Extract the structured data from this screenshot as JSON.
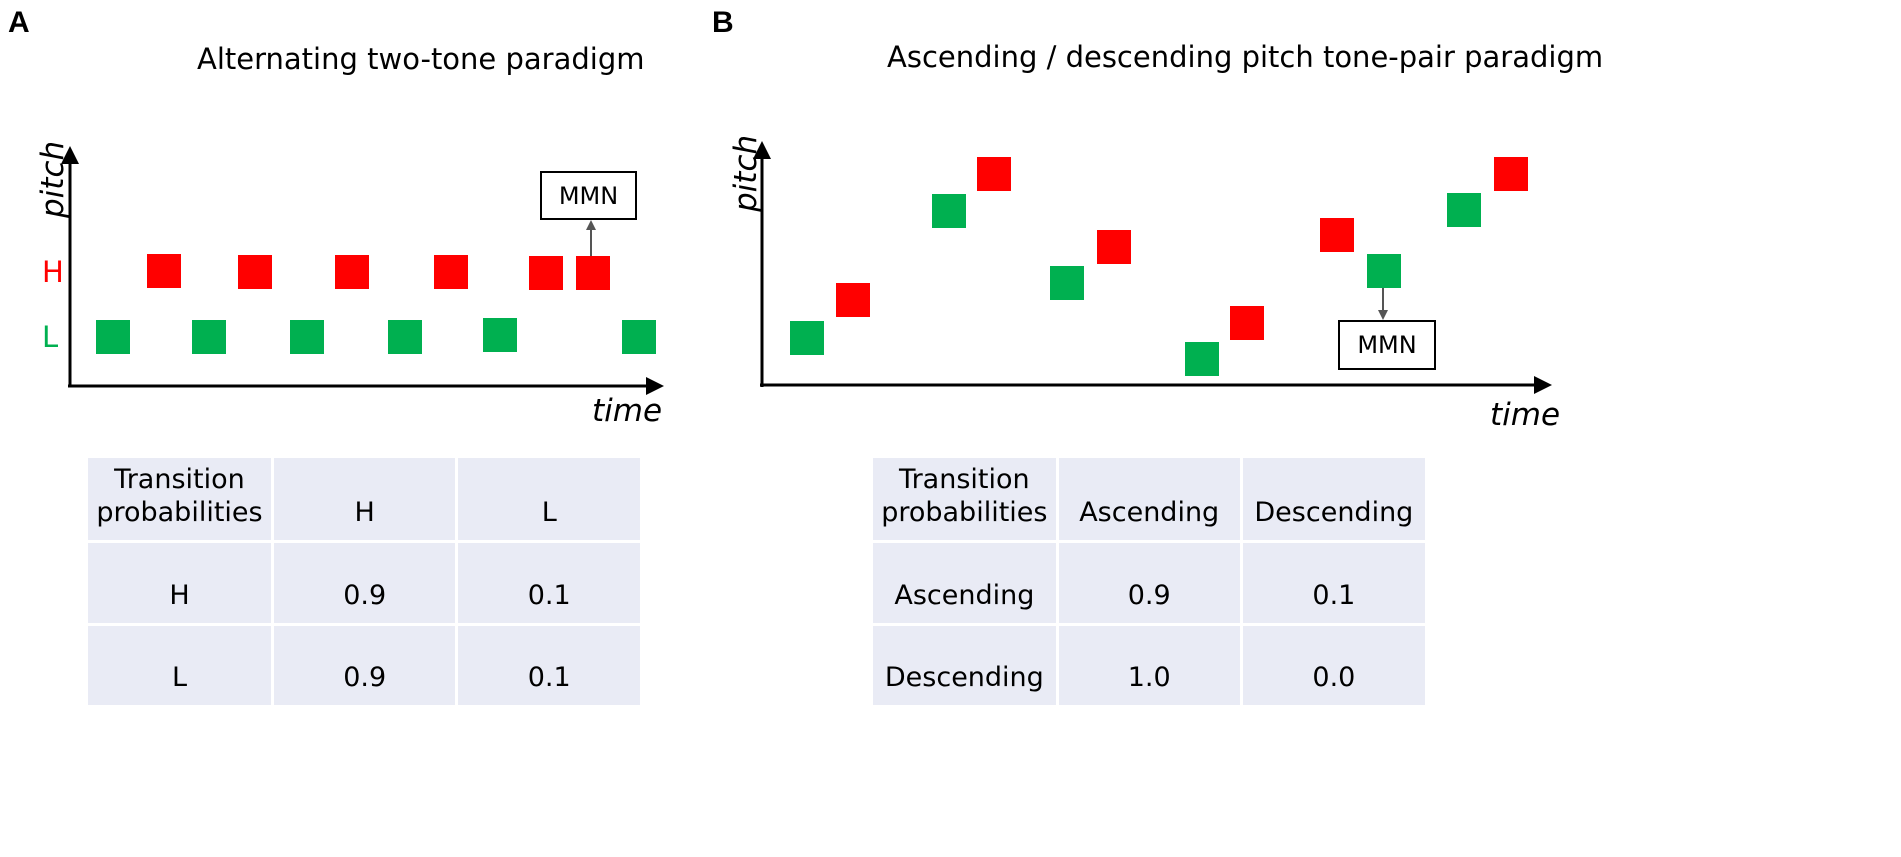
{
  "panel_a": {
    "letter": "A",
    "title": "Alternating two-tone paradigm",
    "y_axis_label": "pitch",
    "x_axis_label": "time",
    "levels": {
      "high": "H",
      "low": "L"
    },
    "mmn_label": "MMN",
    "tones": [
      {
        "pitch": "L",
        "color": "green"
      },
      {
        "pitch": "H",
        "color": "red"
      },
      {
        "pitch": "L",
        "color": "green"
      },
      {
        "pitch": "H",
        "color": "red"
      },
      {
        "pitch": "L",
        "color": "green"
      },
      {
        "pitch": "H",
        "color": "red"
      },
      {
        "pitch": "L",
        "color": "green"
      },
      {
        "pitch": "H",
        "color": "red"
      },
      {
        "pitch": "L",
        "color": "green"
      },
      {
        "pitch": "H",
        "color": "red"
      },
      {
        "pitch": "H",
        "color": "red",
        "deviant": true
      },
      {
        "pitch": "L",
        "color": "green"
      }
    ],
    "table": {
      "header": [
        "Transition probabilities",
        "H",
        "L"
      ],
      "rows": [
        [
          "H",
          "0.9",
          "0.1"
        ],
        [
          "L",
          "0.9",
          "0.1"
        ]
      ]
    }
  },
  "panel_b": {
    "letter": "B",
    "title": "Ascending / descending pitch tone-pair paradigm",
    "y_axis_label": "pitch",
    "x_axis_label": "time",
    "mmn_label": "MMN",
    "table": {
      "header": [
        "Transition probabilities",
        "Ascending",
        "Descending"
      ],
      "rows": [
        [
          "Ascending",
          "0.9",
          "0.1"
        ],
        [
          "Descending",
          "1.0",
          "0.0"
        ]
      ]
    }
  },
  "colors": {
    "high_tone": "#ff0000",
    "low_tone": "#00b050",
    "table_cell": "#e9ebf5",
    "axis": "#000000",
    "mmn_arrow": "#555555"
  }
}
